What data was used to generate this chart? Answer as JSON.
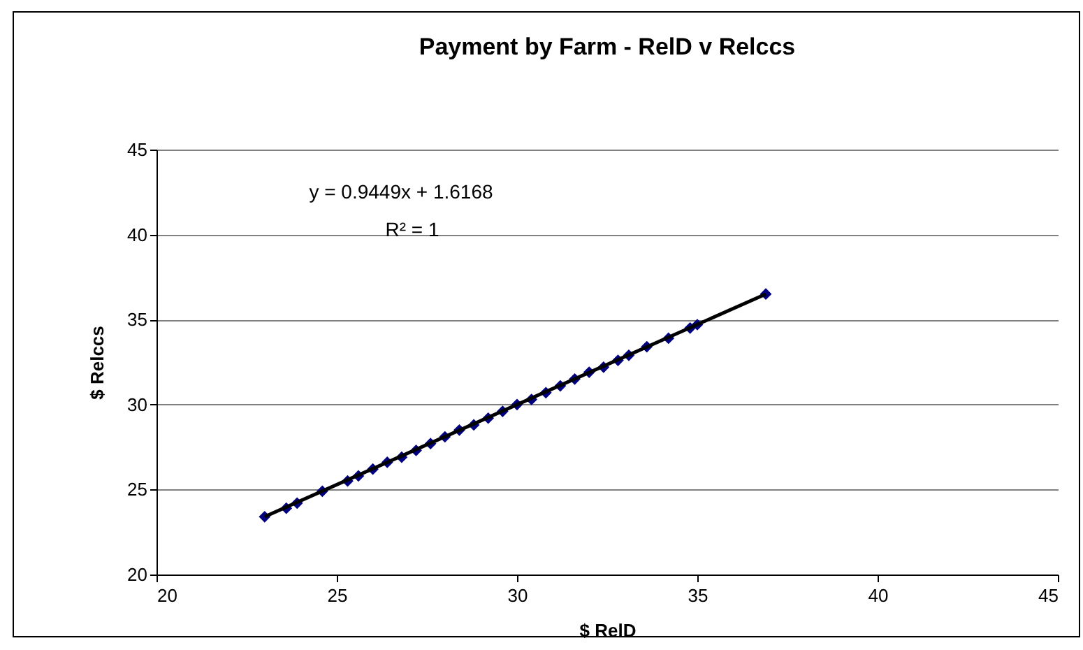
{
  "chart_data": {
    "type": "scatter",
    "title": "Payment by Farm - RelD v Relccs",
    "xlabel": "$ RelD",
    "ylabel": "$ Relccs",
    "x": [
      23.0,
      23.6,
      23.9,
      24.6,
      25.3,
      25.6,
      26.0,
      26.4,
      26.8,
      27.2,
      27.6,
      28.0,
      28.4,
      28.8,
      29.2,
      29.6,
      30.0,
      30.4,
      30.8,
      31.2,
      31.6,
      32.0,
      32.4,
      32.8,
      33.1,
      33.6,
      34.2,
      34.8,
      35.0,
      36.9
    ],
    "series": [
      {
        "color": "#000080",
        "marker": "diamond",
        "values": [
          23.4,
          23.9,
          24.2,
          24.9,
          25.5,
          25.8,
          26.2,
          26.6,
          26.9,
          27.3,
          27.7,
          28.1,
          28.5,
          28.8,
          29.2,
          29.6,
          30.0,
          30.3,
          30.7,
          31.1,
          31.5,
          31.9,
          32.2,
          32.6,
          32.9,
          33.4,
          33.9,
          34.5,
          34.7,
          36.5
        ]
      },
      {
        "type": "line",
        "color": "#000000",
        "x": [
          23.0,
          36.9
        ],
        "values": [
          23.4,
          36.5
        ]
      }
    ],
    "annotations": [
      "y = 0.9449x + 1.6168",
      "R² = 1"
    ],
    "xlim": [
      20,
      45
    ],
    "xticks": [
      20,
      25,
      30,
      35,
      40,
      45
    ],
    "ylim": [
      20,
      45
    ],
    "yticks": [
      20,
      25,
      30,
      35,
      40,
      45
    ],
    "grid": "y"
  }
}
